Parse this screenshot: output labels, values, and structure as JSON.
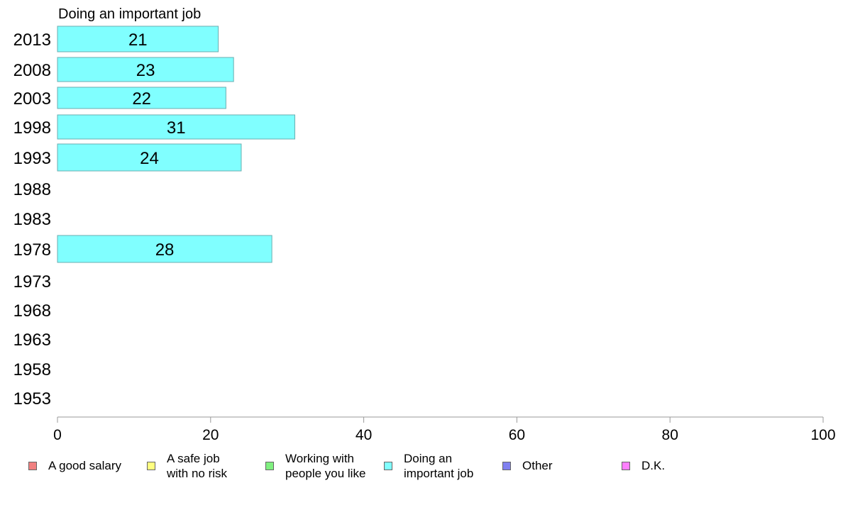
{
  "chart_data": {
    "type": "bar",
    "orientation": "horizontal",
    "title": "Doing an important job",
    "categories": [
      "2013",
      "2008",
      "2003",
      "1998",
      "1993",
      "1988",
      "1983",
      "1978",
      "1973",
      "1968",
      "1963",
      "1958",
      "1953"
    ],
    "series": [
      {
        "name": "Doing an important job",
        "color": "#80ffff",
        "values": [
          21,
          23,
          22,
          31,
          24,
          null,
          null,
          28,
          null,
          null,
          null,
          null,
          null
        ]
      }
    ],
    "xlim": [
      0,
      100
    ],
    "xticks": [
      "0",
      "20",
      "40",
      "60",
      "80",
      "100"
    ],
    "grid": false,
    "legend_position": "bottom"
  },
  "legend": [
    {
      "label": "A good salary",
      "color": "#f08080"
    },
    {
      "label": "A safe job\nwith no risk",
      "color": "#ffff80"
    },
    {
      "label": "Working with\npeople you like",
      "color": "#80f080"
    },
    {
      "label": "Doing an\nimportant job",
      "color": "#80ffff"
    },
    {
      "label": "Other",
      "color": "#8080f0"
    },
    {
      "label": "D.K.",
      "color": "#ff80ff"
    }
  ]
}
